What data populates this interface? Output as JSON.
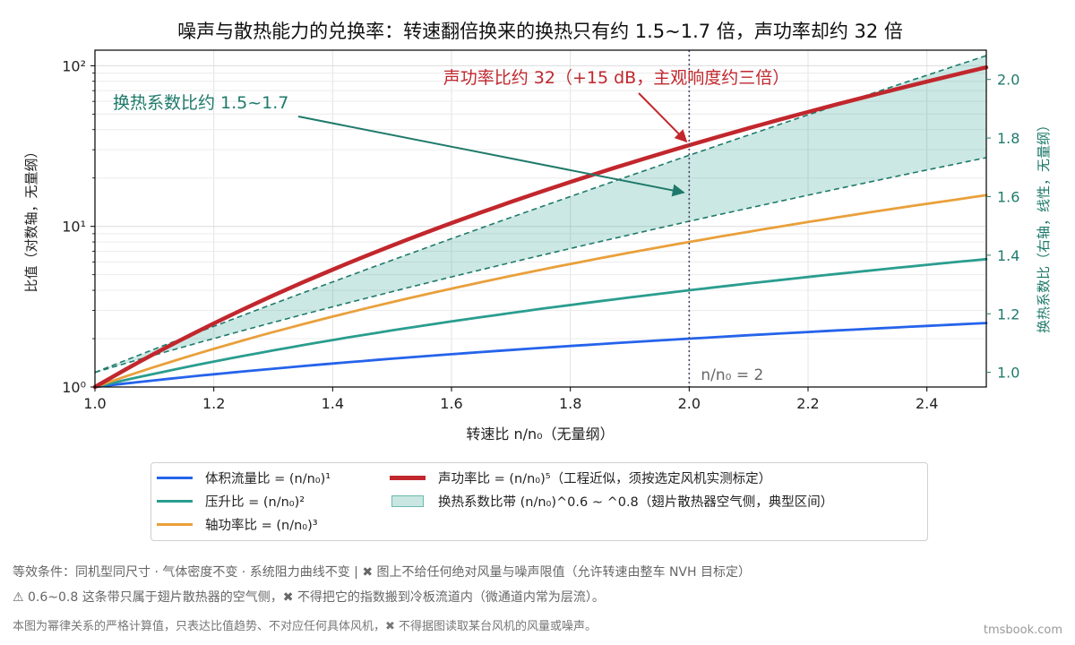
{
  "chart_data": {
    "type": "line",
    "title": "噪声与散热能力的兑换率：转速翻倍换来的换热只有约 1.5~1.7 倍，声功率却约 32 倍",
    "xlabel": "转速比 n/n₀（无量纲）",
    "ylabel": "比值（对数轴，无量纲）",
    "ylabel_right": "换热系数比（右轴，线性，无量纲）",
    "xlim": [
      1.0,
      2.5
    ],
    "ylim": [
      1,
      125
    ],
    "yscale": "log",
    "ylim_right": [
      0.95,
      2.1
    ],
    "xticks": [
      "1.0",
      "1.2",
      "1.4",
      "1.6",
      "1.8",
      "2.0",
      "2.2",
      "2.4"
    ],
    "yticks": [
      {
        "value": 1,
        "label": "10⁰"
      },
      {
        "value": 10,
        "label": "10¹"
      },
      {
        "value": 100,
        "label": "10²"
      }
    ],
    "yticks_right": [
      "1.0",
      "1.2",
      "1.4",
      "1.6",
      "1.8",
      "2.0"
    ],
    "grid": true,
    "series": [
      {
        "name": "体积流量比 = (n/n₀)¹",
        "color": "#2563eb",
        "exponent": 1,
        "x": [
          1.0,
          1.25,
          1.5,
          1.75,
          2.0,
          2.25,
          2.5
        ],
        "values": [
          1.0,
          1.25,
          1.5,
          1.75,
          2.0,
          2.25,
          2.5
        ]
      },
      {
        "name": "压升比 = (n/n₀)²",
        "color": "#2a9d8f",
        "exponent": 2,
        "x": [
          1.0,
          1.25,
          1.5,
          1.75,
          2.0,
          2.25,
          2.5
        ],
        "values": [
          1.0,
          1.5625,
          2.25,
          3.0625,
          4.0,
          5.0625,
          6.25
        ]
      },
      {
        "name": "轴功率比 = (n/n₀)³",
        "color": "#e9a03b",
        "exponent": 3,
        "x": [
          1.0,
          1.25,
          1.5,
          1.75,
          2.0,
          2.25,
          2.5
        ],
        "values": [
          1.0,
          1.953,
          3.375,
          5.359,
          8.0,
          11.39,
          15.63
        ]
      },
      {
        "name": "声功率比 = (n/n₀)⁵（工程近似，须按选定风机实测标定）",
        "color": "#c1272d",
        "exponent": 5,
        "x": [
          1.0,
          1.25,
          1.5,
          1.75,
          2.0,
          2.25,
          2.5
        ],
        "values": [
          1.0,
          3.052,
          7.594,
          16.41,
          32.0,
          57.67,
          97.66
        ]
      }
    ],
    "band": {
      "name": "换热系数比带 (n/n₀)^0.6 ~ ^0.8（翅片散热器空气侧，典型区间）",
      "axis": "right",
      "color": "#2a9d8f",
      "x": [
        1.0,
        1.25,
        1.5,
        1.75,
        2.0,
        2.25,
        2.5
      ],
      "lower": [
        1.0,
        1.143,
        1.275,
        1.399,
        1.516,
        1.627,
        1.733
      ],
      "upper": [
        1.0,
        1.195,
        1.383,
        1.565,
        1.741,
        1.913,
        2.081
      ]
    },
    "vline": {
      "x": 2.0,
      "label": "n/n₀ = 2"
    },
    "annotations": [
      {
        "text": "声功率比约 32（+15 dB，主观响度约三倍）",
        "color": "#c1272d",
        "target": [
          2.0,
          32
        ]
      },
      {
        "text": "换热系数比约 1.5~1.7",
        "color": "#1f7a6b",
        "target": [
          2.0,
          1.62
        ]
      }
    ]
  },
  "legend": {
    "items": [
      {
        "label": "体积流量比 = (n/n₀)¹",
        "color": "#2563eb",
        "kind": "line"
      },
      {
        "label": "压升比 = (n/n₀)²",
        "color": "#2a9d8f",
        "kind": "line"
      },
      {
        "label": "轴功率比 = (n/n₀)³",
        "color": "#e9a03b",
        "kind": "line"
      },
      {
        "label": "声功率比 = (n/n₀)⁵（工程近似，须按选定风机实测标定）",
        "color": "#c1272d",
        "kind": "line-bold"
      },
      {
        "label": "换热系数比带 (n/n₀)^0.6 ~ ^0.8（翅片散热器空气侧，典型区间）",
        "color": "#2a9d8f",
        "kind": "patch"
      }
    ]
  },
  "footer": {
    "line1": "等效条件：同机型同尺寸 · 气体密度不变 · 系统阻力曲线不变 | ✖ 图上不给任何绝对风量与噪声限值（允许转速由整车 NVH 目标定）",
    "line2": "⚠ 0.6~0.8 这条带只属于翅片散热器的空气侧，✖ 不得把它的指数搬到冷板流道内（微通道内常为层流）。",
    "line3": "本图为幂律关系的严格计算值，只表达比值趋势、不对应任何具体风机，✖ 不得据图读取某台风机的风量或噪声。"
  },
  "brand": "tmsbook.com"
}
